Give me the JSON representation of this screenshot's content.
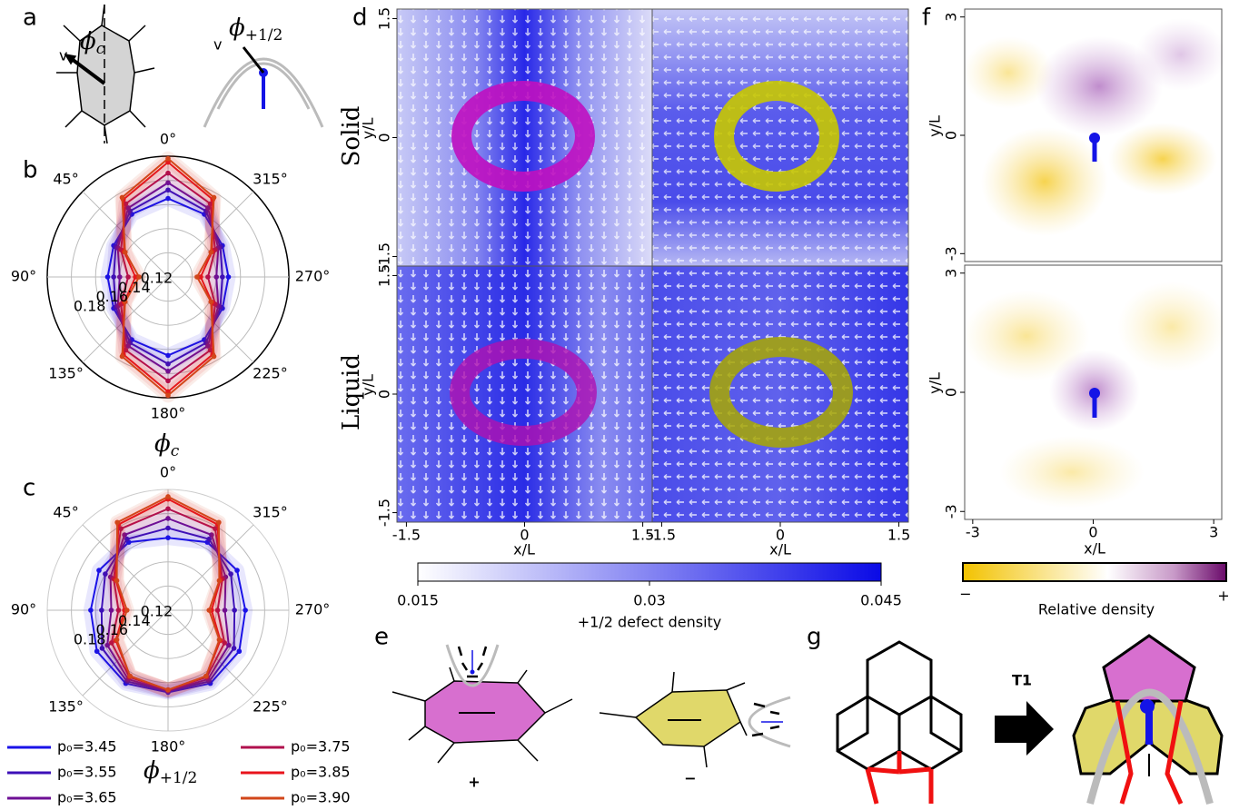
{
  "panel_labels": {
    "a": "a",
    "b": "b",
    "c": "c",
    "d": "d",
    "e": "e",
    "f": "f",
    "g": "g"
  },
  "panel_a": {
    "velocity": "v",
    "cell_angle": {
      "symbol": "ϕ",
      "subscript": "c"
    },
    "defect_angle": {
      "symbol": "ϕ",
      "subscript": "+1/2"
    }
  },
  "polar_b": {
    "type": "polar",
    "axis_title": {
      "symbol": "ϕ",
      "subscript": "c"
    },
    "theta_ticks": [
      {
        "value": 0,
        "label": "0°"
      },
      {
        "value": 45,
        "label": "45°"
      },
      {
        "value": 90,
        "label": "90°"
      },
      {
        "value": 135,
        "label": "135°"
      },
      {
        "value": 180,
        "label": "180°"
      },
      {
        "value": 225,
        "label": "225°"
      },
      {
        "value": 270,
        "label": "270°"
      },
      {
        "value": 315,
        "label": "315°"
      }
    ],
    "rlim": [
      0.1,
      0.2
    ],
    "rticks": [
      0.12,
      0.14,
      0.16,
      0.18
    ],
    "angles": [
      0,
      30,
      60,
      90,
      120,
      150,
      180,
      210,
      240,
      270,
      300,
      330
    ],
    "series": [
      {
        "name": "p₀=3.45",
        "color": "#1a12e8",
        "values": [
          0.165,
          0.16,
          0.152,
          0.15,
          0.152,
          0.16,
          0.165,
          0.16,
          0.152,
          0.15,
          0.152,
          0.16
        ]
      },
      {
        "name": "p₀=3.55",
        "color": "#3d10b8",
        "values": [
          0.172,
          0.163,
          0.15,
          0.145,
          0.15,
          0.163,
          0.172,
          0.163,
          0.15,
          0.145,
          0.15,
          0.163
        ]
      },
      {
        "name": "p₀=3.65",
        "color": "#6e0f95",
        "values": [
          0.178,
          0.166,
          0.148,
          0.14,
          0.148,
          0.166,
          0.178,
          0.166,
          0.148,
          0.14,
          0.148,
          0.166
        ]
      },
      {
        "name": "p₀=3.75",
        "color": "#b0104e",
        "values": [
          0.186,
          0.17,
          0.145,
          0.133,
          0.145,
          0.17,
          0.186,
          0.17,
          0.145,
          0.133,
          0.145,
          0.17
        ]
      },
      {
        "name": "p₀=3.85",
        "color": "#e8141c",
        "values": [
          0.195,
          0.174,
          0.142,
          0.127,
          0.142,
          0.174,
          0.195,
          0.174,
          0.142,
          0.127,
          0.142,
          0.174
        ]
      },
      {
        "name": "p₀=3.90",
        "color": "#d2461a",
        "values": [
          0.198,
          0.176,
          0.141,
          0.124,
          0.141,
          0.176,
          0.198,
          0.176,
          0.141,
          0.124,
          0.141,
          0.176
        ]
      }
    ]
  },
  "polar_c": {
    "type": "polar",
    "axis_title": {
      "symbol": "ϕ",
      "subscript": "+1/2"
    },
    "theta_ticks": [
      {
        "value": 0,
        "label": "0°"
      },
      {
        "value": 45,
        "label": "45°"
      },
      {
        "value": 90,
        "label": "90°"
      },
      {
        "value": 135,
        "label": "135°"
      },
      {
        "value": 180,
        "label": "180°"
      },
      {
        "value": 225,
        "label": "225°"
      },
      {
        "value": 270,
        "label": "270°"
      },
      {
        "value": 315,
        "label": "315°"
      }
    ],
    "rlim": [
      0.1,
      0.2
    ],
    "rticks": [
      0.12,
      0.14,
      0.16,
      0.18
    ],
    "angles": [
      0,
      30,
      60,
      90,
      120,
      150,
      180,
      210,
      240,
      270,
      300,
      330
    ],
    "series": [
      {
        "color": "#1a12e8",
        "values": [
          0.16,
          0.165,
          0.166,
          0.164,
          0.168,
          0.17,
          0.168,
          0.17,
          0.168,
          0.164,
          0.166,
          0.165
        ]
      },
      {
        "color": "#3d10b8",
        "values": [
          0.168,
          0.168,
          0.16,
          0.155,
          0.163,
          0.168,
          0.167,
          0.168,
          0.163,
          0.155,
          0.16,
          0.168
        ]
      },
      {
        "color": "#6e0f95",
        "values": [
          0.176,
          0.172,
          0.155,
          0.147,
          0.158,
          0.166,
          0.167,
          0.166,
          0.158,
          0.147,
          0.155,
          0.172
        ]
      },
      {
        "color": "#b0104e",
        "values": [
          0.184,
          0.178,
          0.152,
          0.141,
          0.154,
          0.164,
          0.166,
          0.164,
          0.154,
          0.141,
          0.152,
          0.178
        ]
      },
      {
        "color": "#e8141c",
        "values": [
          0.192,
          0.182,
          0.15,
          0.136,
          0.15,
          0.163,
          0.166,
          0.163,
          0.15,
          0.136,
          0.15,
          0.182
        ]
      },
      {
        "color": "#d2461a",
        "values": [
          0.194,
          0.184,
          0.149,
          0.134,
          0.149,
          0.163,
          0.166,
          0.163,
          0.149,
          0.134,
          0.149,
          0.184
        ]
      }
    ]
  },
  "panel_d": {
    "rows": [
      "Solid",
      "Liquid"
    ],
    "xlabel": "x/L",
    "ylabel": "y/L",
    "xlim": [
      -1.62,
      1.62
    ],
    "ticks": [
      -1.5,
      0,
      1.5
    ],
    "colorbar": {
      "clim": [
        0.015,
        0.045
      ],
      "ticks": [
        0.015,
        0.03,
        0.045
      ],
      "label": "+1/2 defect density"
    }
  },
  "panel_e": {
    "signs": [
      "+",
      "−"
    ]
  },
  "panel_f": {
    "xlabel": "x/L",
    "ylabel": "y/L",
    "xlim": [
      -3.2,
      3.2
    ],
    "ticks": [
      -3,
      0,
      3
    ],
    "colorbar": {
      "low": "−",
      "high": "+",
      "label": "Relative density"
    }
  },
  "panel_g": {
    "transition": "T1"
  }
}
